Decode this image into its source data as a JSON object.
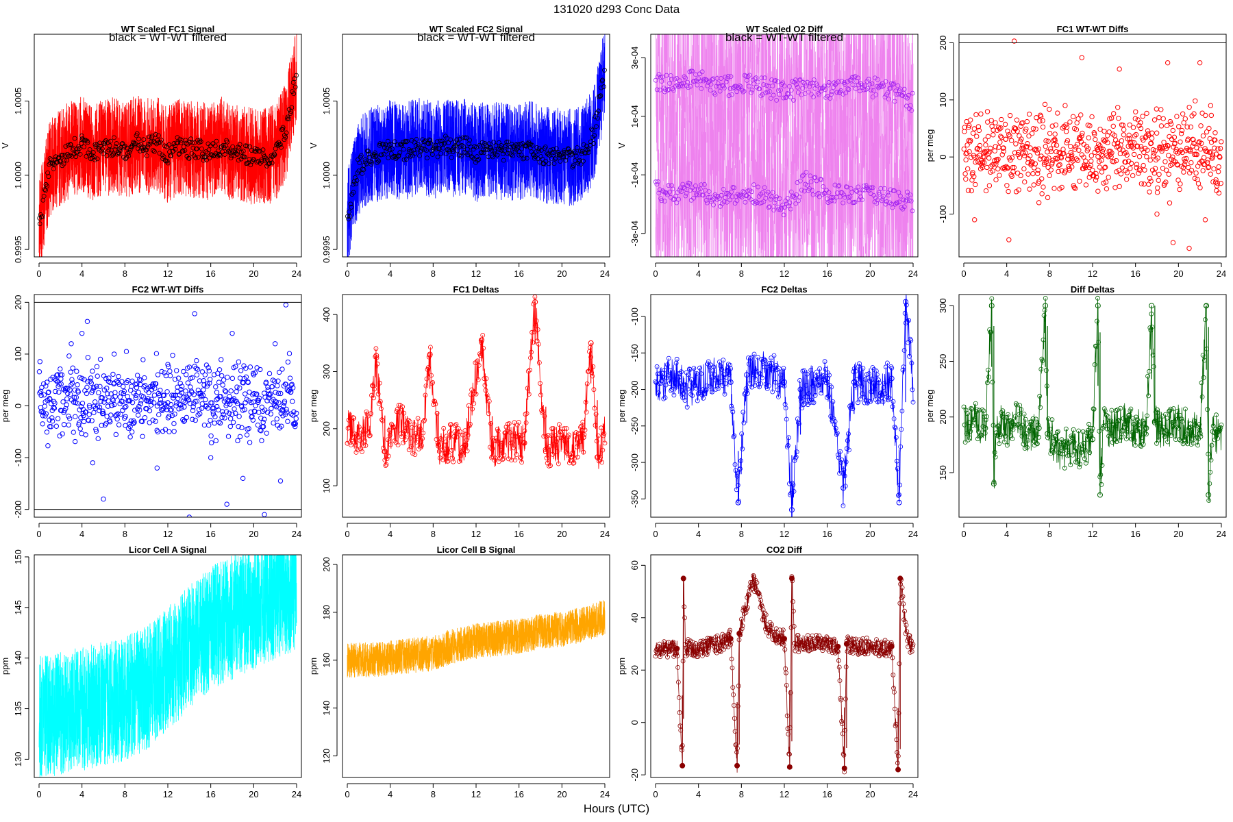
{
  "figure": {
    "title": "131020    d293    Conc Data",
    "xlabel": "Hours (UTC)"
  },
  "chart_data": [
    {
      "id": "wt_fc1",
      "type": "line",
      "title": "WT Scaled FC1 Signal",
      "legend": "black = WT-WT filtered",
      "ylabel": "V",
      "xlim": [
        0,
        24
      ],
      "ylim": [
        0.99945,
        1.00095
      ],
      "yticks": [
        0.9995,
        1.0,
        1.0005
      ],
      "ytick_labels": [
        "0.9995",
        "1.0000",
        "1.0005"
      ],
      "color": "#ff0000",
      "overlay_color": "#000000",
      "series": [
        {
          "name": "signal",
          "x": [
            0,
            1,
            2,
            3,
            4,
            5,
            6,
            7,
            8,
            9,
            10,
            11,
            12,
            13,
            14,
            15,
            16,
            17,
            18,
            19,
            20,
            21,
            22,
            23,
            24
          ],
          "y": [
            0.99965,
            1.00005,
            1.00012,
            1.00018,
            1.0002,
            1.00016,
            1.00018,
            1.0002,
            1.00015,
            1.00022,
            1.00019,
            1.00021,
            1.00014,
            1.0002,
            1.00018,
            1.00017,
            1.00016,
            1.0002,
            1.00015,
            1.00014,
            1.00013,
            1.00012,
            1.00015,
            1.0003,
            1.0007
          ]
        }
      ]
    },
    {
      "id": "wt_fc2",
      "type": "line",
      "title": "WT Scaled FC2 Signal",
      "legend": "black = WT-WT filtered",
      "ylabel": "V",
      "xlim": [
        0,
        24
      ],
      "ylim": [
        0.99945,
        1.00095
      ],
      "yticks": [
        0.9995,
        1.0,
        1.0005
      ],
      "ytick_labels": [
        "0.9995",
        "1.0000",
        "1.0005"
      ],
      "color": "#0000ff",
      "overlay_color": "#000000",
      "series": [
        {
          "name": "signal",
          "x": [
            0,
            1,
            2,
            3,
            4,
            5,
            6,
            7,
            8,
            9,
            10,
            11,
            12,
            13,
            14,
            15,
            16,
            17,
            18,
            19,
            20,
            21,
            22,
            23,
            24
          ],
          "y": [
            0.9997,
            1.00005,
            1.00012,
            1.00015,
            1.00018,
            1.00015,
            1.00018,
            1.0002,
            1.00016,
            1.0002,
            1.00018,
            1.0002,
            1.00014,
            1.00018,
            1.00016,
            1.00016,
            1.00015,
            1.00018,
            1.00014,
            1.00013,
            1.00012,
            1.00012,
            1.00014,
            1.00028,
            1.0007
          ]
        }
      ]
    },
    {
      "id": "wt_o2diff",
      "type": "line",
      "title": "WT Scaled O2 Diff",
      "legend": "black = WT-WT filtered",
      "ylabel": "V",
      "xlim": [
        0,
        24
      ],
      "ylim": [
        -0.00038,
        0.00038
      ],
      "yticks": [
        -0.0003,
        -0.0001,
        0.0001,
        0.0003
      ],
      "ytick_labels": [
        "-3e-04",
        "-1e-04",
        "1e-04",
        "3e-04"
      ],
      "color": "#ee82ee",
      "overlay_color": "#a020f0",
      "series": [
        {
          "name": "upper",
          "x": [
            0,
            2,
            4,
            6,
            8,
            10,
            12,
            14,
            16,
            18,
            20,
            22,
            24
          ],
          "y": [
            0.00022,
            0.00021,
            0.00023,
            0.0002,
            0.00021,
            0.0002,
            0.00018,
            0.0002,
            0.00019,
            0.00021,
            0.0002,
            0.00019,
            0.00015
          ]
        },
        {
          "name": "lower",
          "x": [
            0,
            2,
            4,
            6,
            8,
            10,
            12,
            14,
            16,
            18,
            20,
            22,
            24
          ],
          "y": [
            -0.00015,
            -0.00017,
            -0.00015,
            -0.00018,
            -0.00016,
            -0.00017,
            -0.00022,
            -0.00012,
            -0.00016,
            -0.00017,
            -0.00016,
            -0.00018,
            -0.00019
          ]
        }
      ]
    },
    {
      "id": "fc1_wtwt",
      "type": "scatter",
      "title": "FC1 WT-WT Diffs",
      "ylabel": "per meg",
      "xlim": [
        0,
        24
      ],
      "ylim": [
        -175,
        215
      ],
      "yticks": [
        -100,
        0,
        100,
        200
      ],
      "ytick_labels": [
        "-100",
        "0",
        "100",
        "200"
      ],
      "hline": [
        200
      ],
      "color": "#ff0000",
      "series": [
        {
          "name": "diffs",
          "x": [
            0.2,
            0.5,
            1.0,
            1.5,
            2.0,
            3.0,
            4.2,
            4.7,
            5.5,
            6.0,
            7.0,
            8.5,
            10.0,
            11.0,
            12.5,
            13.0,
            14.5,
            15.5,
            16.5,
            18.0,
            19.0,
            19.5,
            20.5,
            21.0,
            22.0,
            22.5,
            23.0,
            23.5
          ],
          "y": [
            -5,
            55,
            -110,
            20,
            30,
            -40,
            -145,
            203,
            60,
            -30,
            -80,
            40,
            -10,
            174,
            -60,
            30,
            154,
            -20,
            50,
            -100,
            165,
            -150,
            60,
            -160,
            165,
            -110,
            90,
            -40
          ]
        }
      ]
    },
    {
      "id": "fc2_wtwt",
      "type": "scatter",
      "title": "FC2 WT-WT Diffs",
      "ylabel": "per meg",
      "xlim": [
        0,
        24
      ],
      "ylim": [
        -215,
        215
      ],
      "yticks": [
        -200,
        -100,
        0,
        100,
        200
      ],
      "ytick_labels": [
        "-200",
        "-100",
        "0",
        "100",
        "200"
      ],
      "hline": [
        200,
        -200
      ],
      "color": "#0000ff",
      "series": [
        {
          "name": "diffs",
          "x": [
            0.2,
            1.0,
            2.0,
            3.0,
            4.0,
            4.5,
            5.0,
            6.0,
            7.0,
            8.5,
            9.5,
            11.0,
            12.0,
            13.5,
            14.0,
            14.5,
            16.0,
            17.5,
            18.0,
            19.0,
            20.0,
            21.0,
            22.0,
            22.5,
            23.0,
            23.5
          ],
          "y": [
            20,
            -40,
            60,
            120,
            140,
            163,
            -110,
            -180,
            100,
            -60,
            50,
            -120,
            80,
            -30,
            -215,
            178,
            -100,
            -190,
            140,
            -140,
            60,
            -210,
            120,
            -145,
            195,
            40
          ]
        }
      ]
    },
    {
      "id": "fc1_deltas",
      "type": "line",
      "title": "FC1 Deltas",
      "ylabel": "per meg",
      "xlim": [
        0,
        24
      ],
      "ylim": [
        45,
        435
      ],
      "yticks": [
        100,
        200,
        300,
        400
      ],
      "ytick_labels": [
        "100",
        "200",
        "300",
        "400"
      ],
      "color": "#ff0000",
      "series": [
        {
          "name": "deltas",
          "x": [
            0,
            1,
            2,
            2.7,
            3.5,
            5,
            6,
            7,
            7.7,
            8.5,
            10,
            11,
            12.5,
            13.5,
            15,
            16.5,
            17.5,
            18.5,
            20,
            21,
            22,
            22.7,
            23.3,
            24
          ],
          "y": [
            200,
            190,
            200,
            328,
            160,
            215,
            180,
            190,
            330,
            170,
            175,
            170,
            355,
            165,
            180,
            175,
            422,
            160,
            175,
            170,
            185,
            350,
            150,
            190
          ]
        }
      ]
    },
    {
      "id": "fc2_deltas",
      "type": "line",
      "title": "FC2 Deltas",
      "ylabel": "per meg",
      "xlim": [
        0,
        24
      ],
      "ylim": [
        -375,
        -70
      ],
      "yticks": [
        -350,
        -300,
        -250,
        -200,
        -150,
        -100
      ],
      "ytick_labels": [
        "-350",
        "-300",
        "-250",
        "-200",
        "-150",
        "-100"
      ],
      "color": "#0000ff",
      "series": [
        {
          "name": "deltas",
          "x": [
            0,
            1,
            2,
            3,
            4,
            5,
            6,
            7,
            7.7,
            8.5,
            10,
            11,
            12,
            12.7,
            13.5,
            15,
            16,
            17.5,
            18.5,
            20,
            21,
            22,
            22.7,
            23.3,
            24
          ],
          "y": [
            -190,
            -185,
            -180,
            -200,
            -190,
            -185,
            -180,
            -190,
            -355,
            -180,
            -175,
            -180,
            -190,
            -365,
            -200,
            -190,
            -185,
            -335,
            -190,
            -195,
            -200,
            -185,
            -355,
            -80,
            -190
          ]
        }
      ]
    },
    {
      "id": "diff_deltas",
      "type": "line",
      "title": "Diff Deltas",
      "ylabel": "per meg",
      "xlim": [
        0,
        24
      ],
      "ylim": [
        110,
        310
      ],
      "yticks": [
        150,
        200,
        250,
        300
      ],
      "ytick_labels": [
        "150",
        "200",
        "250",
        "300"
      ],
      "color": "#006400",
      "series": [
        {
          "name": "deltas",
          "x": [
            0,
            1,
            2,
            2.6,
            2.8,
            3.0,
            4,
            5,
            6,
            7,
            7.6,
            7.8,
            8.2,
            9,
            10,
            11,
            12,
            12.5,
            12.7,
            13,
            14,
            15,
            16,
            17,
            17.5,
            17.8,
            18.2,
            19,
            20,
            21,
            22,
            22.6,
            22.8,
            23.2,
            24
          ],
          "y": [
            195,
            195,
            190,
            300,
            140,
            195,
            190,
            195,
            185,
            190,
            300,
            185,
            180,
            170,
            175,
            170,
            180,
            300,
            130,
            190,
            190,
            195,
            190,
            190,
            300,
            195,
            190,
            190,
            195,
            190,
            185,
            300,
            130,
            185,
            185
          ]
        }
      ]
    },
    {
      "id": "licor_a",
      "type": "line",
      "title": "Licor Cell A Signal",
      "ylabel": "ppm",
      "xlim": [
        0,
        24
      ],
      "ylim": [
        128.2,
        150.2
      ],
      "yticks": [
        130,
        135,
        140,
        145,
        150
      ],
      "ytick_labels": [
        "130",
        "135",
        "140",
        "145",
        "150"
      ],
      "color": "#00ffff",
      "series": [
        {
          "name": "signal",
          "x": [
            0,
            2,
            4,
            6,
            8,
            10,
            12,
            14,
            16,
            18,
            20,
            22,
            24
          ],
          "y": [
            134,
            134.5,
            135,
            135.5,
            136,
            137,
            139,
            141,
            143,
            144,
            145,
            146,
            147
          ]
        }
      ]
    },
    {
      "id": "licor_b",
      "type": "line",
      "title": "Licor Cell B Signal",
      "ylabel": "ppm",
      "xlim": [
        0,
        24
      ],
      "ylim": [
        111,
        204
      ],
      "yticks": [
        120,
        140,
        160,
        180,
        200
      ],
      "ytick_labels": [
        "120",
        "140",
        "160",
        "180",
        "200"
      ],
      "color": "#ffa500",
      "series": [
        {
          "name": "signal",
          "x": [
            0,
            2,
            4,
            6,
            8,
            10,
            12,
            14,
            16,
            18,
            20,
            22,
            24
          ],
          "y": [
            160,
            160,
            161,
            162,
            163,
            166,
            168,
            169,
            170,
            172,
            173,
            175,
            178
          ]
        }
      ]
    },
    {
      "id": "co2_diff",
      "type": "line",
      "title": "CO2 Diff",
      "ylabel": "ppm",
      "xlim": [
        0,
        24
      ],
      "ylim": [
        -21,
        64
      ],
      "yticks": [
        -20,
        0,
        20,
        40,
        60
      ],
      "ytick_labels": [
        "-20",
        "0",
        "20",
        "40",
        "60"
      ],
      "color": "#8b0000",
      "series": [
        {
          "name": "diff",
          "x": [
            0,
            1,
            2,
            2.5,
            2.6,
            2.8,
            3.0,
            4,
            5,
            6,
            7,
            7.6,
            7.8,
            8.5,
            9,
            9.5,
            10,
            11,
            12,
            12.5,
            12.7,
            13,
            14,
            15,
            16,
            17,
            17.6,
            17.8,
            18.5,
            19,
            20,
            21,
            22,
            22.6,
            22.8,
            23.5,
            24
          ],
          "y": [
            28.5,
            28.3,
            28.2,
            -16.5,
            55,
            28.5,
            28.3,
            28.5,
            29,
            30,
            32,
            -16.5,
            34,
            45,
            55,
            50,
            40,
            33,
            32,
            -17,
            55,
            30,
            30,
            30,
            30,
            29,
            -17.5,
            30,
            29.5,
            29,
            29,
            28,
            29,
            -18,
            55,
            30,
            30
          ]
        }
      ]
    }
  ]
}
